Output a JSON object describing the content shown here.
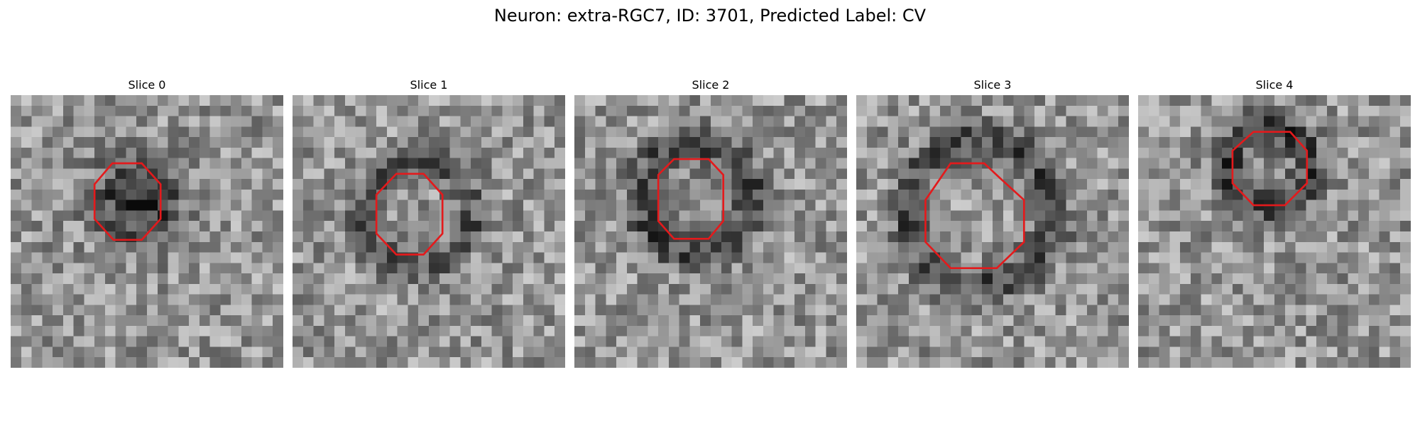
{
  "figure": {
    "title": "Neuron: extra-RGC7, ID: 3701, Predicted Label: CV",
    "contour_color": "#e31a1c",
    "colormap": "grayscale"
  },
  "slices": [
    {
      "label": "Slice 0",
      "contour": [
        [
          9.7,
          6.5
        ],
        [
          12.5,
          6.5
        ],
        [
          14.3,
          8.5
        ],
        [
          14.3,
          11.8
        ],
        [
          12.5,
          13.8
        ],
        [
          9.8,
          13.8
        ],
        [
          8.0,
          11.8
        ],
        [
          8.0,
          8.5
        ]
      ]
    },
    {
      "label": "Slice 1",
      "contour": [
        [
          9.9,
          7.5
        ],
        [
          12.5,
          7.5
        ],
        [
          14.3,
          9.5
        ],
        [
          14.3,
          13.2
        ],
        [
          12.5,
          15.2
        ],
        [
          9.9,
          15.2
        ],
        [
          8.0,
          13.2
        ],
        [
          8.0,
          9.5
        ]
      ]
    },
    {
      "label": "Slice 2",
      "contour": [
        [
          9.5,
          6.1
        ],
        [
          12.8,
          6.1
        ],
        [
          14.2,
          7.6
        ],
        [
          14.2,
          12.0
        ],
        [
          12.8,
          13.7
        ],
        [
          9.5,
          13.7
        ],
        [
          8.0,
          12.0
        ],
        [
          8.0,
          7.6
        ]
      ]
    },
    {
      "label": "Slice 3",
      "contour": [
        [
          9.0,
          6.5
        ],
        [
          12.2,
          6.5
        ],
        [
          13.8,
          8.0
        ],
        [
          16.0,
          10.0
        ],
        [
          16.0,
          14.0
        ],
        [
          13.4,
          16.5
        ],
        [
          9.0,
          16.5
        ],
        [
          6.6,
          14.0
        ],
        [
          6.6,
          10.0
        ]
      ]
    },
    {
      "label": "Slice 4",
      "contour": [
        [
          11.0,
          3.5
        ],
        [
          14.5,
          3.5
        ],
        [
          16.1,
          5.3
        ],
        [
          16.1,
          8.4
        ],
        [
          14.0,
          10.5
        ],
        [
          11.0,
          10.5
        ],
        [
          9.0,
          8.4
        ],
        [
          9.0,
          5.3
        ]
      ]
    }
  ]
}
